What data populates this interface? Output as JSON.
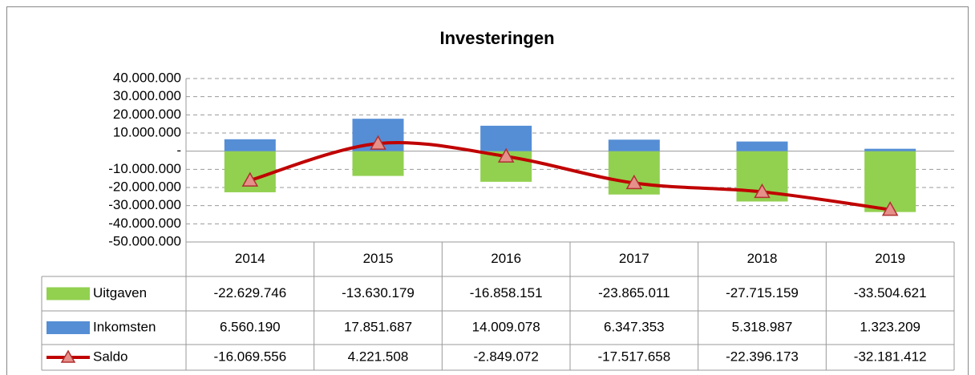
{
  "chart_data": {
    "type": "bar",
    "title": "Investeringen",
    "categories": [
      "2014",
      "2015",
      "2016",
      "2017",
      "2018",
      "2019"
    ],
    "series": [
      {
        "name": "Uitgaven",
        "color": "#92d050",
        "type": "bar",
        "values": [
          -22629746,
          -13630179,
          -16858151,
          -23865011,
          -27715159,
          -33504621
        ],
        "value_labels": [
          "-22.629.746",
          "-13.630.179",
          "-16.858.151",
          "-23.865.011",
          "-27.715.159",
          "-33.504.621"
        ]
      },
      {
        "name": "Inkomsten",
        "color": "#558ed5",
        "type": "bar",
        "values": [
          6560190,
          17851687,
          14009078,
          6347353,
          5318987,
          1323209
        ],
        "value_labels": [
          "6.560.190",
          "17.851.687",
          "14.009.078",
          "6.347.353",
          "5.318.987",
          "1.323.209"
        ]
      },
      {
        "name": "Saldo",
        "color": "#c00000",
        "type": "line",
        "values": [
          -16069556,
          4221508,
          -2849072,
          -17517658,
          -22396173,
          -32181412
        ],
        "value_labels": [
          "-16.069.556",
          "4.221.508",
          "-2.849.072",
          "-17.517.658",
          "-22.396.173",
          "-32.181.412"
        ]
      }
    ],
    "ylim": [
      -50000000,
      40000000
    ],
    "yticks": [
      {
        "value": -50000000,
        "label": "-50.000.000"
      },
      {
        "value": -40000000,
        "label": "-40.000.000"
      },
      {
        "value": -30000000,
        "label": "-30.000.000"
      },
      {
        "value": -20000000,
        "label": "-20.000.000"
      },
      {
        "value": -10000000,
        "label": "-10.000.000"
      },
      {
        "value": 0,
        "label": "-"
      },
      {
        "value": 10000000,
        "label": "10.000.000"
      },
      {
        "value": 20000000,
        "label": "20.000.000"
      },
      {
        "value": 30000000,
        "label": "30.000.000"
      },
      {
        "value": 40000000,
        "label": "40.000.000"
      }
    ],
    "grid": true
  }
}
